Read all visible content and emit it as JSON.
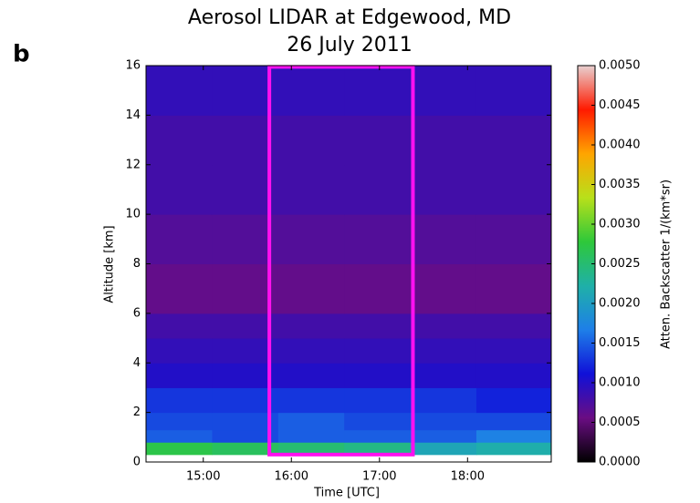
{
  "chart_data": {
    "type": "heatmap",
    "panel_label": "b",
    "title": "Aerosol LIDAR at Edgewood, MD",
    "subtitle": "26 July 2011",
    "x_label": "Time [UTC]",
    "y_label": "Altitude [km]",
    "colorbar_label": "Atten. Backscatter 1/(km*sr)",
    "xlim": [
      14.35,
      18.95
    ],
    "xticks": [
      {
        "value": 15,
        "label": "15:00"
      },
      {
        "value": 16,
        "label": "16:00"
      },
      {
        "value": 17,
        "label": "17:00"
      },
      {
        "value": 18,
        "label": "18:00"
      }
    ],
    "ylim": [
      0,
      16
    ],
    "yticks": [
      0,
      2,
      4,
      6,
      8,
      10,
      12,
      14,
      16
    ],
    "x_edges": [
      14.35,
      15.1,
      15.85,
      16.6,
      17.35,
      18.1,
      18.95
    ],
    "y_edges": [
      0.3,
      0.8,
      1.3,
      2,
      3,
      4,
      5,
      6,
      8,
      10,
      12,
      14,
      16
    ],
    "z": [
      [
        0.0027,
        0.0026,
        0.0025,
        0.0024,
        0.0021,
        0.0022
      ],
      [
        0.0015,
        0.0014,
        0.0015,
        0.0015,
        0.0015,
        0.0017
      ],
      [
        0.0014,
        0.0014,
        0.0015,
        0.0014,
        0.0014,
        0.0014
      ],
      [
        0.0013,
        0.0013,
        0.0013,
        0.0013,
        0.0013,
        0.0012
      ],
      [
        0.001,
        0.001,
        0.001,
        0.001,
        0.001,
        0.001
      ],
      [
        0.0009,
        0.0009,
        0.0009,
        0.0009,
        0.0009,
        0.0009
      ],
      [
        0.0008,
        0.0008,
        0.0008,
        0.0008,
        0.0008,
        0.0008
      ],
      [
        0.0006,
        0.0006,
        0.0006,
        0.0006,
        0.0006,
        0.0006
      ],
      [
        0.0007,
        0.0007,
        0.0007,
        0.0007,
        0.0007,
        0.0007
      ],
      [
        0.0008,
        0.0008,
        0.0008,
        0.0008,
        0.0008,
        0.0008
      ],
      [
        0.0008,
        0.0008,
        0.0008,
        0.0008,
        0.0008,
        0.0008
      ],
      [
        0.0009,
        0.0009,
        0.0009,
        0.0009,
        0.0009,
        0.0009
      ]
    ],
    "clim": [
      0,
      0.005
    ],
    "cticks": [
      {
        "value": 0,
        "label": "0.0000"
      },
      {
        "value": 0.0005,
        "label": "0.0005"
      },
      {
        "value": 0.001,
        "label": "0.0010"
      },
      {
        "value": 0.0015,
        "label": "0.0015"
      },
      {
        "value": 0.002,
        "label": "0.0020"
      },
      {
        "value": 0.0025,
        "label": "0.0025"
      },
      {
        "value": 0.003,
        "label": "0.0030"
      },
      {
        "value": 0.0035,
        "label": "0.0035"
      },
      {
        "value": 0.004,
        "label": "0.0040"
      },
      {
        "value": 0.0045,
        "label": "0.0045"
      },
      {
        "value": 0.005,
        "label": "0.0050"
      }
    ],
    "colormap": [
      "#000000",
      "#6a0d83",
      "#1010d8",
      "#1e7fe8",
      "#1fb0a8",
      "#2ec83a",
      "#b8e01a",
      "#ffa500",
      "#ff1a00",
      "#e8d0d0"
    ],
    "highlight": {
      "x": [
        15.75,
        17.38
      ],
      "y": [
        0.3,
        15.95
      ],
      "color": "#ff10f0"
    }
  }
}
